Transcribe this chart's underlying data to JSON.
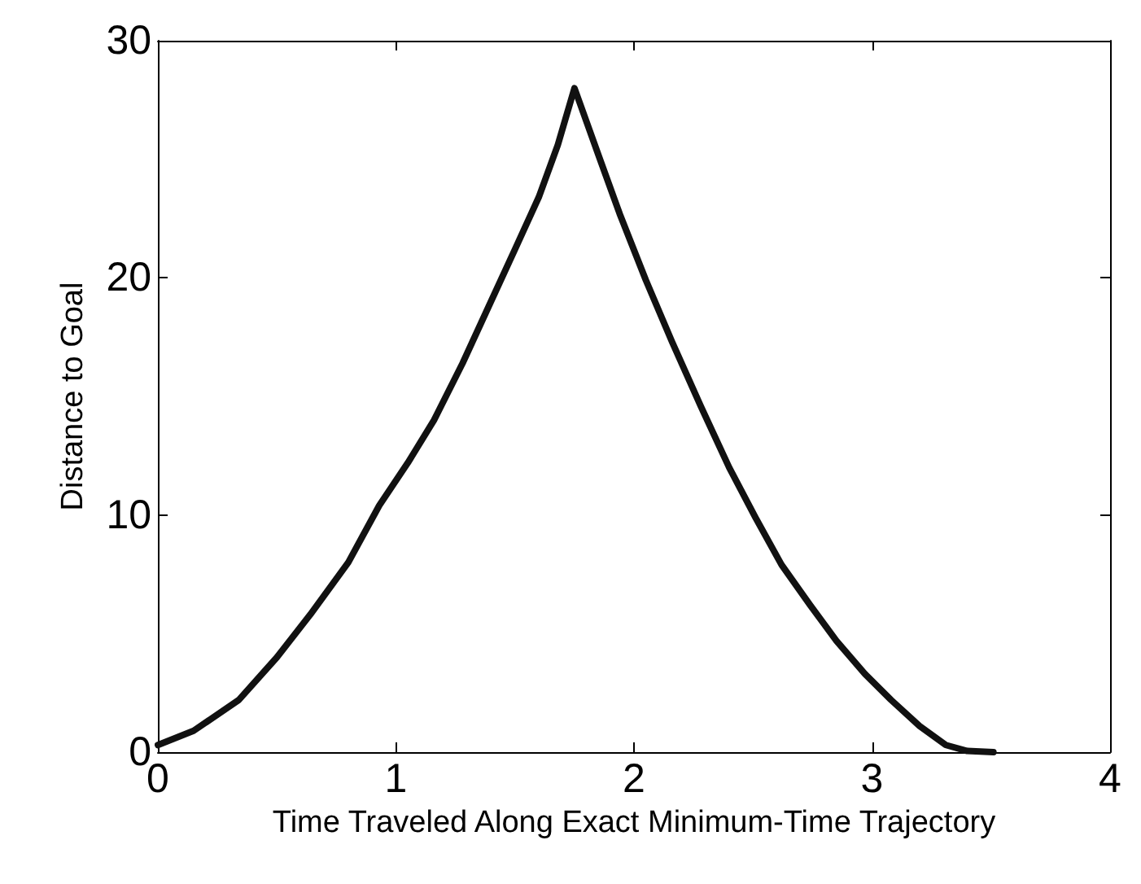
{
  "chart_data": {
    "type": "line",
    "xlabel": "Time Traveled Along Exact Minimum-Time Trajectory",
    "ylabel": "Distance to Goal",
    "series": [
      {
        "color": "#111111",
        "x": [
          0,
          0.15,
          0.34,
          0.5,
          0.64,
          0.8,
          0.93,
          1.05,
          1.16,
          1.28,
          1.39,
          1.5,
          1.6,
          1.68,
          1.75,
          1.85,
          1.94,
          2.05,
          2.16,
          2.28,
          2.4,
          2.51,
          2.62,
          2.74,
          2.85,
          2.97,
          3.08,
          3.2,
          3.31,
          3.4,
          3.51
        ],
        "values": [
          0.3,
          0.9,
          2.2,
          4.0,
          5.8,
          8.0,
          10.4,
          12.2,
          14.0,
          16.4,
          18.8,
          21.2,
          23.4,
          25.6,
          28.0,
          25.2,
          22.7,
          19.9,
          17.3,
          14.6,
          12.0,
          9.9,
          7.9,
          6.2,
          4.7,
          3.3,
          2.2,
          1.1,
          0.3,
          0.05,
          0
        ]
      }
    ],
    "xlim": [
      0,
      4
    ],
    "xticks": [
      0,
      1,
      2,
      3,
      4
    ],
    "ylim": [
      0,
      30
    ],
    "yticks": [
      0,
      10,
      20,
      30
    ],
    "marker": "none",
    "line_style": "solid"
  }
}
